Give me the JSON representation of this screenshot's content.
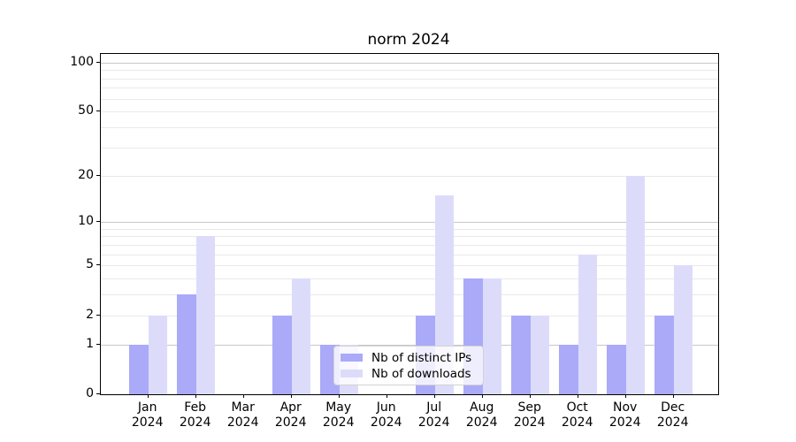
{
  "title": "norm 2024",
  "chart_data": {
    "type": "bar",
    "title": "norm 2024",
    "xlabel": "",
    "ylabel": "",
    "scale": "log1p",
    "ylim": [
      0,
      113
    ],
    "yticks": [
      0,
      1,
      2,
      5,
      10,
      20,
      50,
      100
    ],
    "grid": "both",
    "legend_position": "lower center-left",
    "months": [
      "Jan",
      "Feb",
      "Mar",
      "Apr",
      "May",
      "Jun",
      "Jul",
      "Aug",
      "Sep",
      "Oct",
      "Nov",
      "Dec"
    ],
    "year_label": "2024",
    "series": [
      {
        "name": "Nb of distinct IPs",
        "color": "#aaaaf8",
        "values": [
          1,
          3,
          0,
          2,
          1,
          0,
          2,
          4,
          2,
          1,
          1,
          2
        ]
      },
      {
        "name": "Nb of downloads",
        "color": "#dcdcfa",
        "values": [
          2,
          8,
          0,
          4,
          1,
          0,
          15,
          4,
          2,
          6,
          20,
          5
        ]
      }
    ]
  },
  "colors": {
    "major_grid": "#c8c8c8",
    "minor_grid": "#e9e9e9",
    "axis": "#000000"
  }
}
